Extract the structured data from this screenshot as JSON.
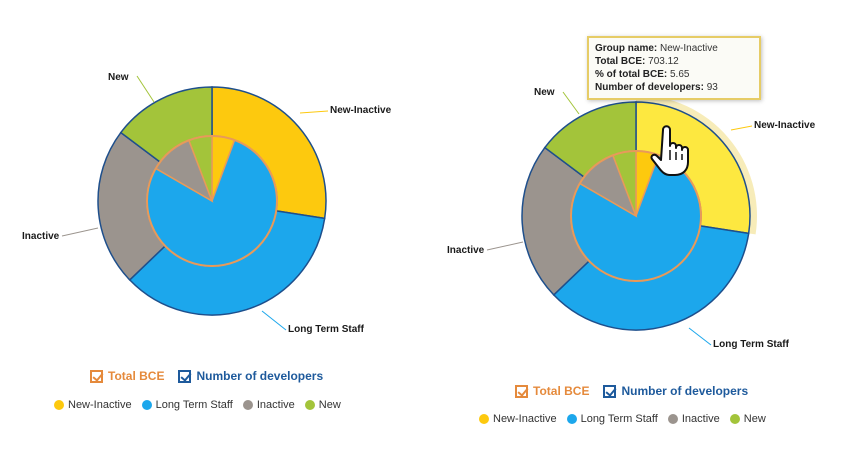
{
  "colors": {
    "new_inactive": "#fdc90e",
    "new_inactive_hover": "#fde840",
    "long_term_staff": "#1ca7ec",
    "inactive": "#9b948e",
    "new": "#a3c43a",
    "ring_border": "#1e4f8c",
    "inner_border": "#e89a5a",
    "total_bce_color": "#e58a3c",
    "developers_color": "#1e5a9c"
  },
  "charts": [
    {
      "measures": {
        "total_bce": "Total BCE",
        "developers": "Number of developers"
      },
      "legend": [
        {
          "label": "New-Inactive",
          "color_key": "new_inactive"
        },
        {
          "label": "Long Term Staff",
          "color_key": "long_term_staff"
        },
        {
          "label": "Inactive",
          "color_key": "inactive"
        },
        {
          "label": "New",
          "color_key": "new"
        }
      ]
    },
    {
      "measures": {
        "total_bce": "Total BCE",
        "developers": "Number of developers"
      },
      "legend": [
        {
          "label": "New-Inactive",
          "color_key": "new_inactive"
        },
        {
          "label": "Long Term Staff",
          "color_key": "long_term_staff"
        },
        {
          "label": "Inactive",
          "color_key": "inactive"
        },
        {
          "label": "New",
          "color_key": "new"
        }
      ],
      "tooltip": {
        "group_name_label": "Group name:",
        "group_name": "New-Inactive",
        "total_bce_label": "Total BCE:",
        "total_bce": "703.12",
        "pct_label": "% of total BCE:",
        "pct": "5.65",
        "devs_label": "Number of developers:",
        "devs": "93"
      }
    }
  ],
  "chart_data": [
    {
      "type": "pie",
      "series": [
        {
          "name": "Number of developers",
          "categories": [
            "New-Inactive",
            "Long Term Staff",
            "Inactive",
            "New"
          ],
          "values": [
            93,
            120,
            76,
            50
          ]
        },
        {
          "name": "Total BCE",
          "categories": [
            "New-Inactive",
            "Long Term Staff",
            "Inactive",
            "New"
          ],
          "values": [
            703.12,
            9665,
            1350,
            720
          ]
        }
      ],
      "legend_position": "bottom"
    },
    {
      "type": "pie",
      "series": [
        {
          "name": "Number of developers",
          "categories": [
            "New-Inactive",
            "Long Term Staff",
            "Inactive",
            "New"
          ],
          "values": [
            93,
            120,
            76,
            50
          ]
        },
        {
          "name": "Total BCE",
          "categories": [
            "New-Inactive",
            "Long Term Staff",
            "Inactive",
            "New"
          ],
          "values": [
            703.12,
            9665,
            1350,
            720
          ]
        }
      ],
      "legend_position": "bottom",
      "highlighted": "New-Inactive"
    }
  ]
}
